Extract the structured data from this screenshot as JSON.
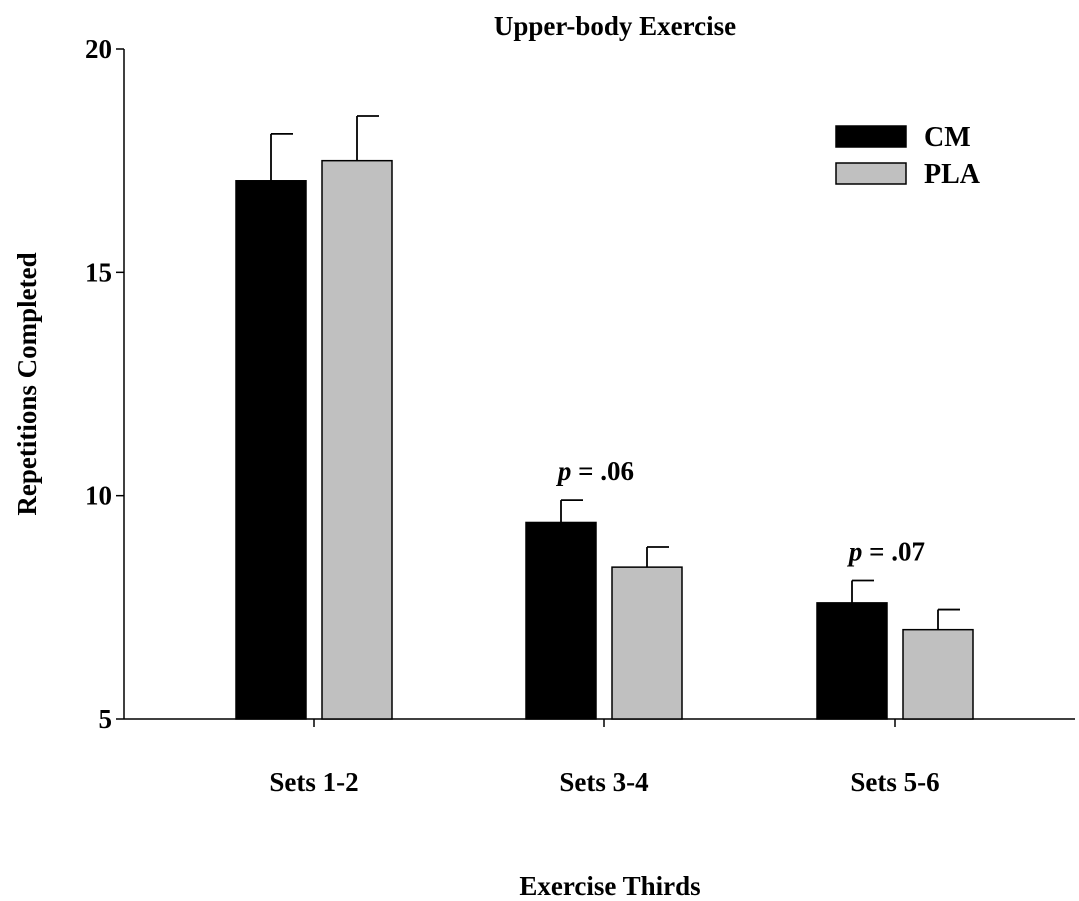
{
  "chart_data": {
    "type": "bar",
    "title": "Upper-body Exercise",
    "xlabel": "Exercise Thirds",
    "ylabel": "Repetitions Completed",
    "ylim": [
      5,
      20
    ],
    "yticks": [
      5,
      10,
      15,
      20
    ],
    "categories": [
      "Sets 1-2",
      "Sets 3-4",
      "Sets 5-6"
    ],
    "series": [
      {
        "name": "CM",
        "color": "#000000",
        "values": [
          17.05,
          9.4,
          7.6
        ],
        "error": [
          1.05,
          0.5,
          0.5
        ]
      },
      {
        "name": "PLA",
        "color": "#c0c0c0",
        "values": [
          17.5,
          8.4,
          7.0
        ],
        "error": [
          1.0,
          0.45,
          0.45
        ]
      }
    ],
    "legend_position": "top-right",
    "grid": false,
    "annotations": [
      {
        "category_index": 1,
        "italic": "p",
        "rest": " = .06"
      },
      {
        "category_index": 2,
        "italic": "p",
        "rest": " = .07"
      }
    ]
  }
}
